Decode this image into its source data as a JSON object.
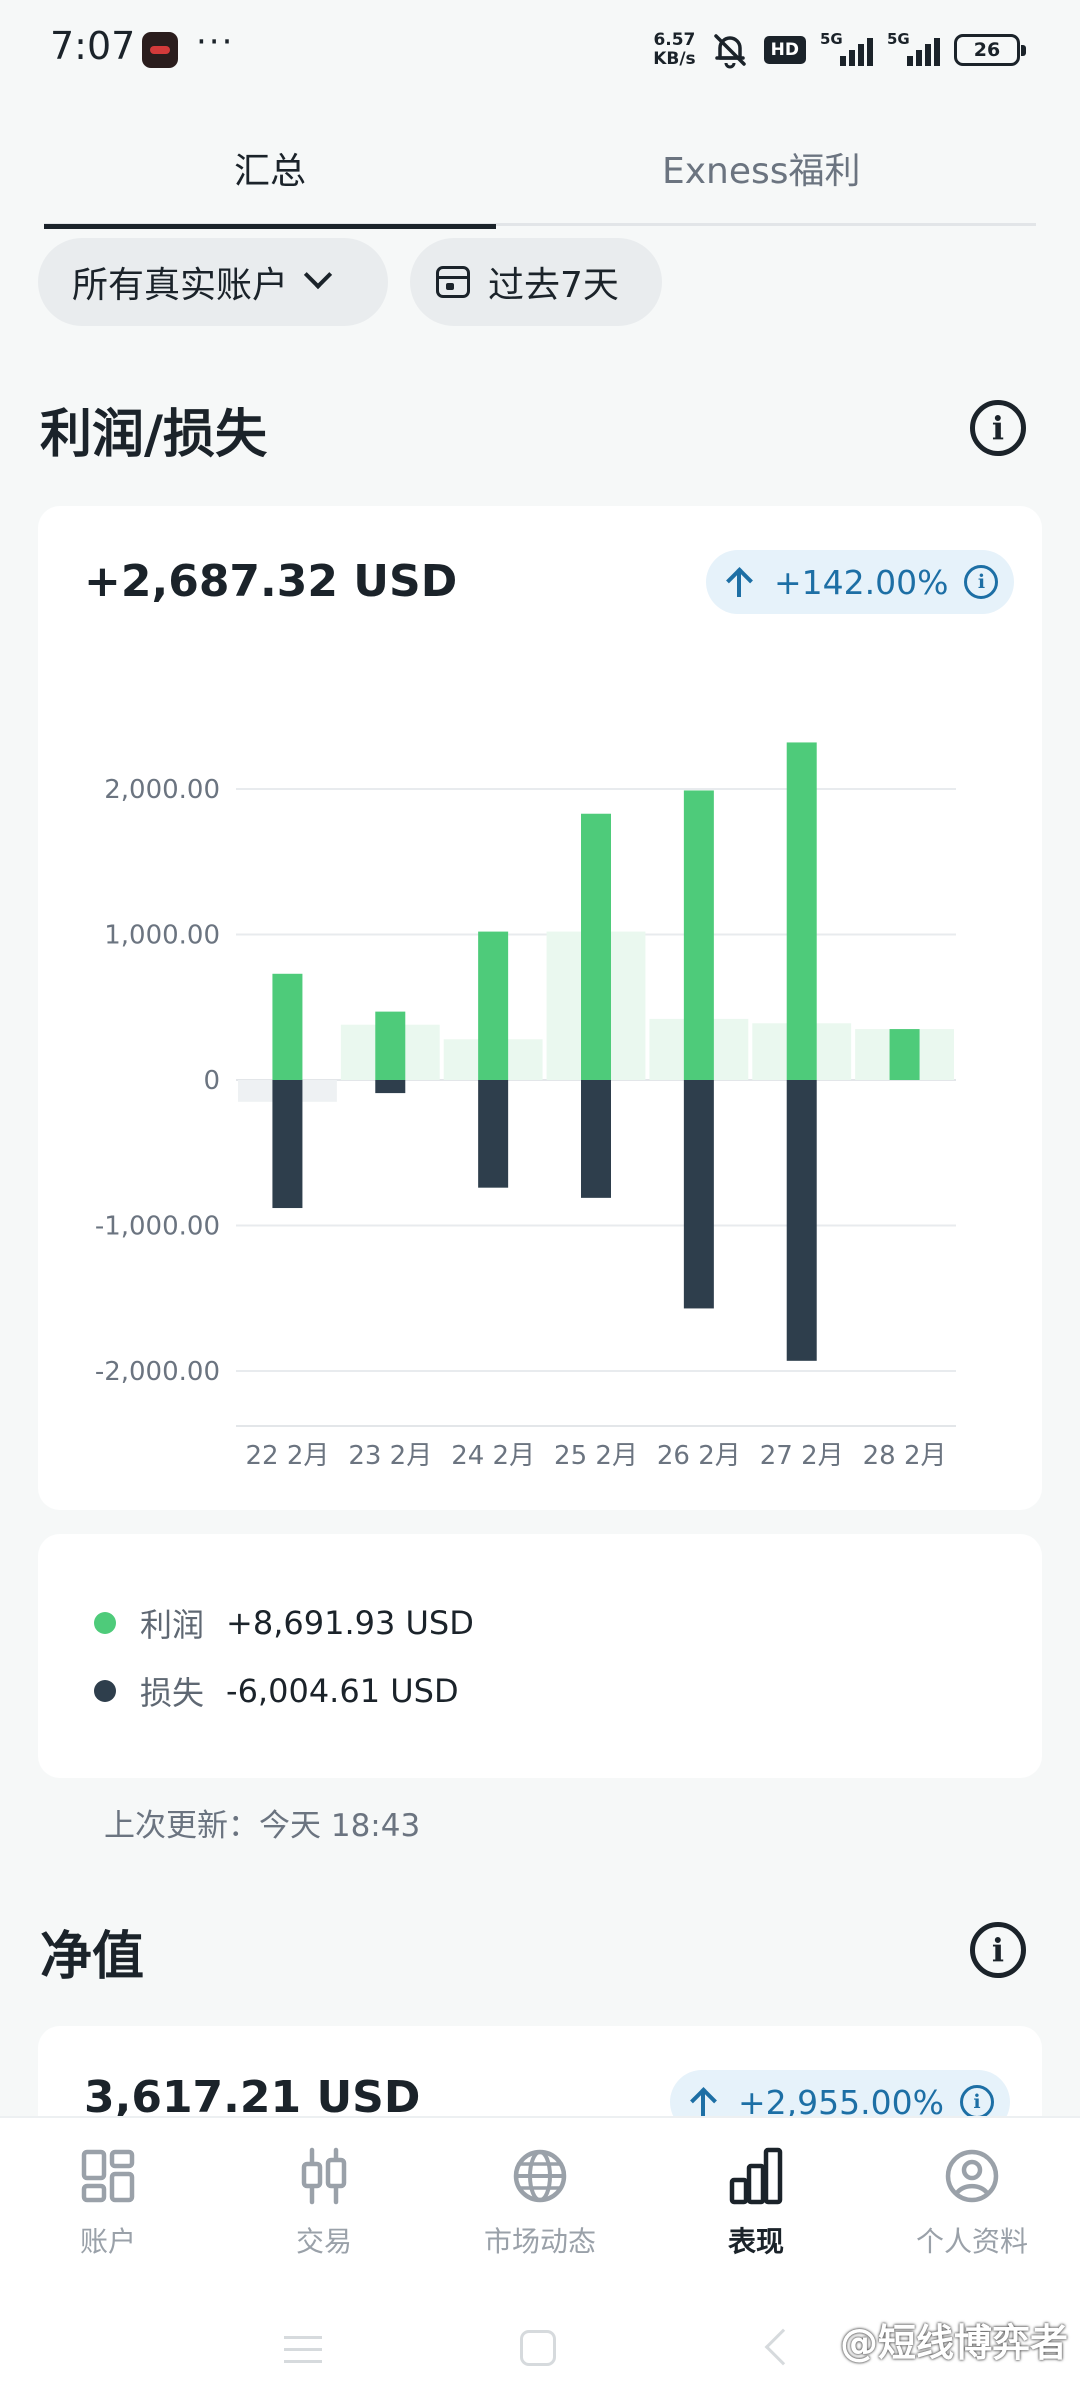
{
  "status_bar": {
    "time": "7:07",
    "net_speed_value": "6.57",
    "net_speed_unit": "KB/s",
    "hd_label": "HD",
    "signal1_label": "5G",
    "signal2_label": "5G",
    "battery": "26"
  },
  "tabs": [
    {
      "label": "汇总",
      "active": true
    },
    {
      "label": "Exness福利",
      "active": false
    }
  ],
  "filters": {
    "accounts_label": "所有真实账户",
    "period_label": "过去7天"
  },
  "profit_loss": {
    "title": "利润/损失",
    "total": "+2,687.32 USD",
    "change_pct": "+142.00%",
    "legend": [
      {
        "name": "利润",
        "value": "+8,691.93 USD",
        "color": "#4ecb7a"
      },
      {
        "name": "损失",
        "value": "-6,004.61 USD",
        "color": "#2e3e4c"
      }
    ],
    "updated": "上次更新：今天 18:43"
  },
  "chart_data": {
    "type": "bar",
    "categories": [
      "22 2月",
      "23 2月",
      "24 2月",
      "25 2月",
      "26 2月",
      "27 2月",
      "28 2月"
    ],
    "series": [
      {
        "name": "利润",
        "values": [
          730,
          470,
          1020,
          1830,
          1990,
          2320,
          350
        ],
        "color": "#4ecb7a"
      },
      {
        "name": "损失",
        "values": [
          -880,
          -90,
          -740,
          -810,
          -1570,
          -1930,
          0
        ],
        "color": "#2e3e4c"
      }
    ],
    "net_background": [
      -150,
      380,
      280,
      1020,
      420,
      390,
      350
    ],
    "ylim": [
      -2000,
      2000
    ],
    "yticks": [
      2000,
      1000,
      0,
      -1000,
      -2000
    ],
    "ytick_labels": [
      "2,000.00",
      "1,000.00",
      "0",
      "-1,000.00",
      "-2,000.00"
    ],
    "grid": true,
    "xlabel": "",
    "ylabel": ""
  },
  "equity": {
    "title": "净值",
    "total": "3,617.21 USD",
    "change_pct": "+2,955.00%"
  },
  "bottom_nav": [
    {
      "label": "账户",
      "icon": "accounts-grid-icon",
      "active": false
    },
    {
      "label": "交易",
      "icon": "candlestick-icon",
      "active": false
    },
    {
      "label": "市场动态",
      "icon": "globe-icon",
      "active": false
    },
    {
      "label": "表现",
      "icon": "bar-chart-icon",
      "active": true
    },
    {
      "label": "个人资料",
      "icon": "profile-icon",
      "active": false
    }
  ],
  "watermark": "@短线博弈者"
}
